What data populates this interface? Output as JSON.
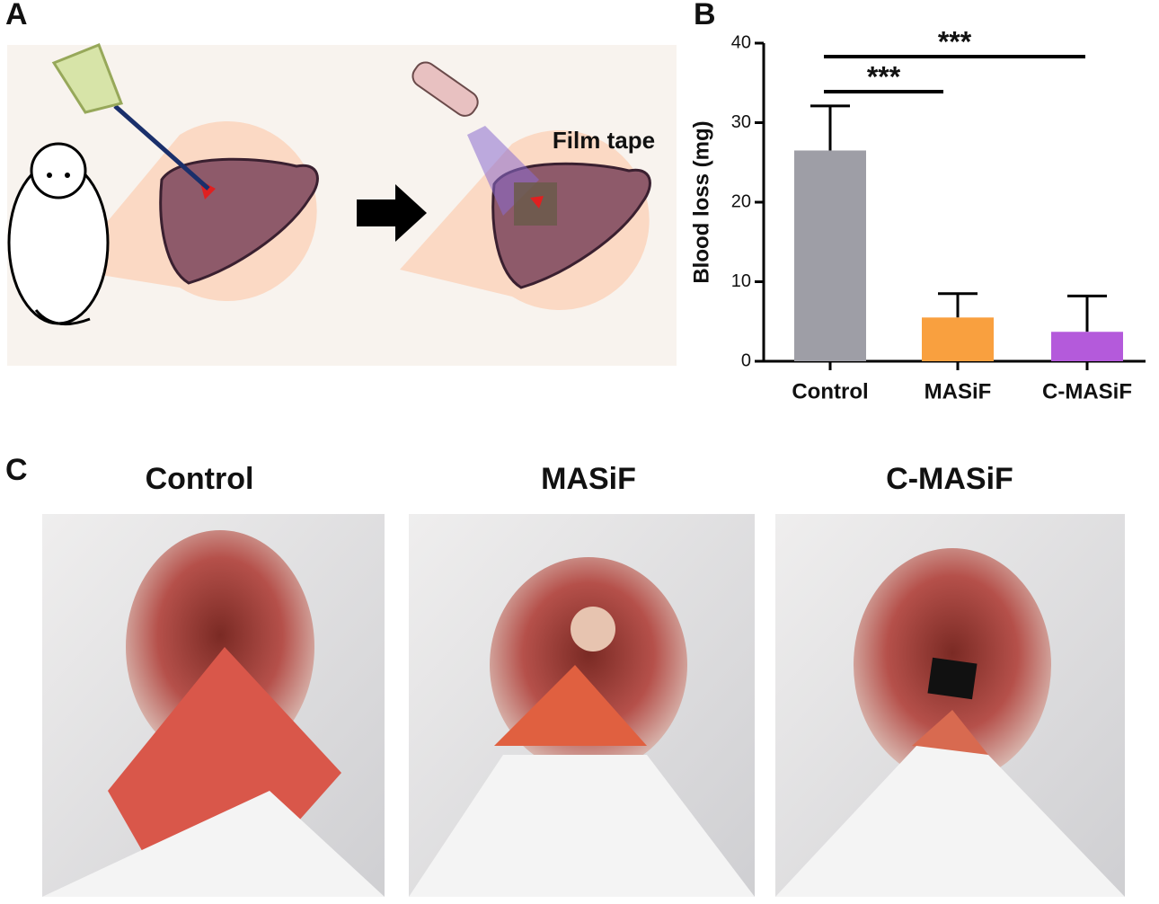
{
  "panels": {
    "a": "A",
    "b": "B",
    "c": "C",
    "film_tape": "Film tape",
    "photo_titles": [
      "Control",
      "MASiF",
      "C-MASiF"
    ]
  },
  "chart_data": {
    "type": "bar",
    "ylabel": "Blood loss (mg)",
    "categories": [
      "Control",
      "MASiF",
      "C-MASiF"
    ],
    "values": [
      26.5,
      5.5,
      3.7
    ],
    "errors": [
      5.6,
      3.0,
      4.5
    ],
    "colors": [
      "#9e9ea6",
      "#f9a03f",
      "#b45adb"
    ],
    "ylim": [
      0,
      40
    ],
    "yticks": [
      0,
      10,
      20,
      30,
      40
    ],
    "annotations": [
      {
        "text": "***",
        "from": 0,
        "to": 2
      },
      {
        "text": "***",
        "from": 0,
        "to": 1
      }
    ]
  }
}
